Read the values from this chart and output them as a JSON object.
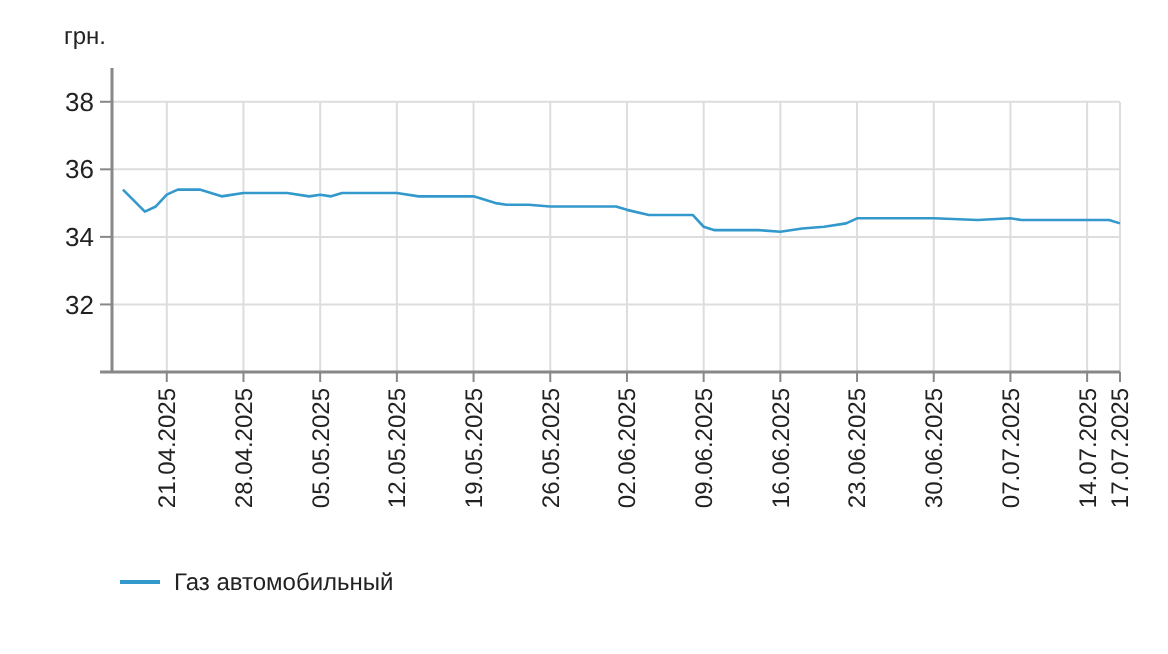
{
  "chart_data": {
    "type": "line",
    "ylabel": "грн.",
    "x": [
      "2025-04-17",
      "2025-04-19",
      "2025-04-20",
      "2025-04-21",
      "2025-04-22",
      "2025-04-24",
      "2025-04-26",
      "2025-04-28",
      "2025-05-02",
      "2025-05-04",
      "2025-05-05",
      "2025-05-06",
      "2025-05-07",
      "2025-05-12",
      "2025-05-14",
      "2025-05-19",
      "2025-05-21",
      "2025-05-22",
      "2025-05-24",
      "2025-05-26",
      "2025-06-01",
      "2025-06-02",
      "2025-06-04",
      "2025-06-08",
      "2025-06-09",
      "2025-06-10",
      "2025-06-14",
      "2025-06-16",
      "2025-06-18",
      "2025-06-20",
      "2025-06-22",
      "2025-06-23",
      "2025-06-30",
      "2025-07-04",
      "2025-07-07",
      "2025-07-08",
      "2025-07-16",
      "2025-07-17"
    ],
    "series": [
      {
        "name": "Газ автомобильный",
        "color": "#3399cc",
        "values": [
          35.4,
          34.75,
          34.9,
          35.25,
          35.4,
          35.4,
          35.2,
          35.3,
          35.3,
          35.2,
          35.25,
          35.2,
          35.3,
          35.3,
          35.2,
          35.2,
          35.0,
          34.95,
          34.95,
          34.9,
          34.9,
          34.8,
          34.65,
          34.65,
          34.3,
          34.2,
          34.2,
          34.15,
          34.25,
          34.3,
          34.4,
          34.55,
          34.55,
          34.5,
          34.55,
          34.5,
          34.5,
          34.4
        ]
      }
    ],
    "xlim": [
      "2025-04-16",
      "2025-07-17"
    ],
    "xticks": [
      {
        "value": "2025-04-21",
        "label": "21.04.2025"
      },
      {
        "value": "2025-04-28",
        "label": "28.04.2025"
      },
      {
        "value": "2025-05-05",
        "label": "05.05.2025"
      },
      {
        "value": "2025-05-12",
        "label": "12.05.2025"
      },
      {
        "value": "2025-05-19",
        "label": "19.05.2025"
      },
      {
        "value": "2025-05-26",
        "label": "26.05.2025"
      },
      {
        "value": "2025-06-02",
        "label": "02.06.2025"
      },
      {
        "value": "2025-06-09",
        "label": "09.06.2025"
      },
      {
        "value": "2025-06-16",
        "label": "16.06.2025"
      },
      {
        "value": "2025-06-23",
        "label": "23.06.2025"
      },
      {
        "value": "2025-06-30",
        "label": "30.06.2025"
      },
      {
        "value": "2025-07-07",
        "label": "07.07.2025"
      },
      {
        "value": "2025-07-14",
        "label": "14.07.2025"
      },
      {
        "value": "2025-07-17",
        "label": "17.07.2025"
      }
    ],
    "ylim": [
      30,
      39
    ],
    "yticks": [
      32,
      34,
      36,
      38
    ],
    "grid": true,
    "legend": "bottom left",
    "line_style": "solid"
  }
}
